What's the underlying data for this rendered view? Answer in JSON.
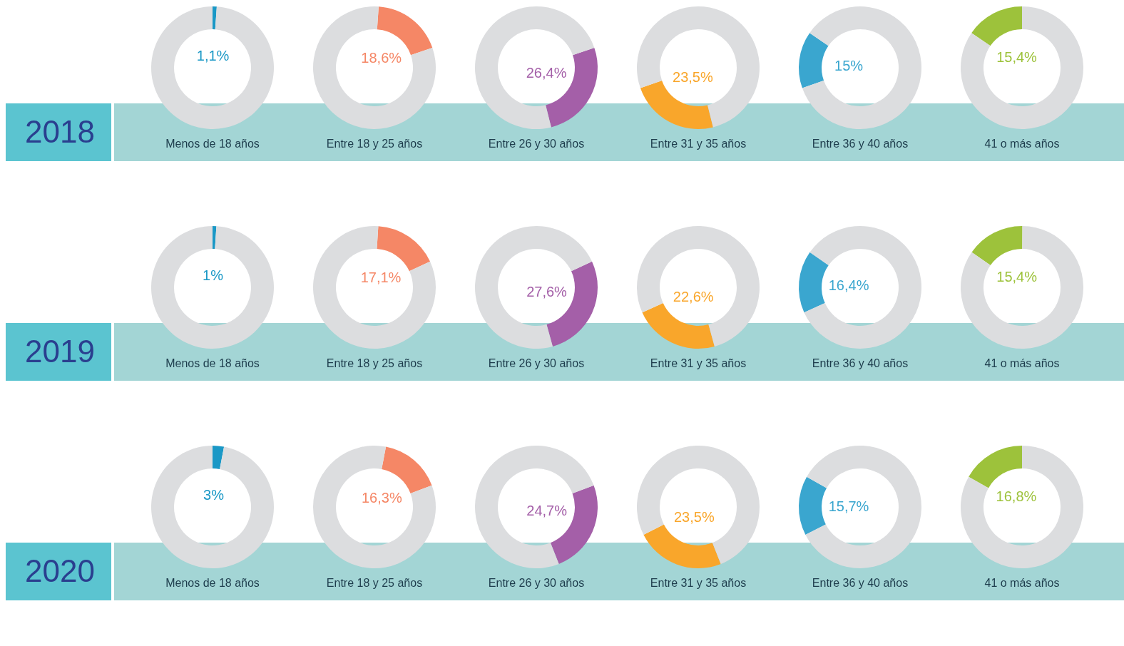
{
  "chart_data": [
    {
      "type": "donut",
      "annotations": [
        "2018"
      ],
      "title": "Menos de 18 años",
      "categories": [
        null,
        null
      ],
      "values": [
        1.1,
        98.9
      ],
      "colors": [
        "#1a98c6",
        "#dcdddf"
      ],
      "value_labels": [
        "1,1%",
        null
      ]
    },
    {
      "type": "donut",
      "title": "Entre 18 y 25 años",
      "categories": [
        null,
        null
      ],
      "values": [
        18.6,
        81.4
      ],
      "colors": [
        "#f58766",
        "#dcdddf"
      ],
      "value_labels": [
        "18,6%",
        null
      ]
    },
    {
      "type": "donut",
      "title": "Entre 26 y 30 años",
      "categories": [
        null,
        null
      ],
      "values": [
        26.4,
        73.6
      ],
      "colors": [
        "#a45fa8",
        "#dcdddf"
      ],
      "value_labels": [
        "26,4%",
        null
      ]
    },
    {
      "type": "donut",
      "title": "Entre 31 y 35 años",
      "categories": [
        null,
        null
      ],
      "values": [
        23.5,
        76.5
      ],
      "colors": [
        "#f9a62b",
        "#dcdddf"
      ],
      "value_labels": [
        "23,5%",
        null
      ]
    },
    {
      "type": "donut",
      "title": "Entre 36 y 40 años",
      "categories": [
        null,
        null
      ],
      "values": [
        15,
        85
      ],
      "colors": [
        "#3aa6cf",
        "#dcdddf"
      ],
      "value_labels": [
        "15%",
        null
      ]
    },
    {
      "type": "donut",
      "title": "41 o más años",
      "categories": [
        null,
        null
      ],
      "values": [
        15.4,
        84.6
      ],
      "colors": [
        "#9dc23b",
        "#dcdddf"
      ],
      "value_labels": [
        "15,4%",
        null
      ]
    },
    {
      "type": "donut",
      "annotations": [
        "2019"
      ],
      "title": "Menos de 18 años",
      "categories": [
        null,
        null
      ],
      "values": [
        1,
        99
      ],
      "colors": [
        "#1a98c6",
        "#dcdddf"
      ],
      "value_labels": [
        "1%",
        null
      ]
    },
    {
      "type": "donut",
      "title": "Entre 18 y 25 años",
      "categories": [
        null,
        null
      ],
      "values": [
        17.1,
        82.9
      ],
      "colors": [
        "#f58766",
        "#dcdddf"
      ],
      "value_labels": [
        "17,1%",
        null
      ]
    },
    {
      "type": "donut",
      "title": "Entre 26 y 30 años",
      "categories": [
        null,
        null
      ],
      "values": [
        27.6,
        72.4
      ],
      "colors": [
        "#a45fa8",
        "#dcdddf"
      ],
      "value_labels": [
        "27,6%",
        null
      ]
    },
    {
      "type": "donut",
      "title": "Entre 31 y 35 años",
      "categories": [
        null,
        null
      ],
      "values": [
        22.6,
        77.4
      ],
      "colors": [
        "#f9a62b",
        "#dcdddf"
      ],
      "value_labels": [
        "22,6%",
        null
      ]
    },
    {
      "type": "donut",
      "title": "Entre 36 y 40 años",
      "categories": [
        null,
        null
      ],
      "values": [
        16.4,
        83.6
      ],
      "colors": [
        "#3aa6cf",
        "#dcdddf"
      ],
      "value_labels": [
        "16,4%",
        null
      ]
    },
    {
      "type": "donut",
      "title": "41 o más años",
      "categories": [
        null,
        null
      ],
      "values": [
        15.4,
        84.6
      ],
      "colors": [
        "#9dc23b",
        "#dcdddf"
      ],
      "value_labels": [
        "15,4%",
        null
      ]
    },
    {
      "type": "donut",
      "annotations": [
        "2020"
      ],
      "title": "Menos de 18 años",
      "categories": [
        null,
        null
      ],
      "values": [
        3,
        97
      ],
      "colors": [
        "#1a98c6",
        "#dcdddf"
      ],
      "value_labels": [
        "3%",
        null
      ]
    },
    {
      "type": "donut",
      "title": "Entre 18 y 25 años",
      "categories": [
        null,
        null
      ],
      "values": [
        16.3,
        83.7
      ],
      "colors": [
        "#f58766",
        "#dcdddf"
      ],
      "value_labels": [
        "16,3%",
        null
      ]
    },
    {
      "type": "donut",
      "title": "Entre 26 y 30 años",
      "categories": [
        null,
        null
      ],
      "values": [
        24.7,
        75.3
      ],
      "colors": [
        "#a45fa8",
        "#dcdddf"
      ],
      "value_labels": [
        "24,7%",
        null
      ]
    },
    {
      "type": "donut",
      "title": "Entre 31 y 35 años",
      "categories": [
        null,
        null
      ],
      "values": [
        23.5,
        76.5
      ],
      "colors": [
        "#f9a62b",
        "#dcdddf"
      ],
      "value_labels": [
        "23,5%",
        null
      ]
    },
    {
      "type": "donut",
      "title": "Entre 36 y 40 años",
      "categories": [
        null,
        null
      ],
      "values": [
        15.7,
        84.3
      ],
      "colors": [
        "#3aa6cf",
        "#dcdddf"
      ],
      "value_labels": [
        "15,7%",
        null
      ]
    },
    {
      "type": "donut",
      "title": "41 o más años",
      "categories": [
        null,
        null
      ],
      "values": [
        16.8,
        83.2
      ],
      "colors": [
        "#9dc23b",
        "#dcdddf"
      ],
      "value_labels": [
        "16,8%",
        null
      ]
    }
  ]
}
